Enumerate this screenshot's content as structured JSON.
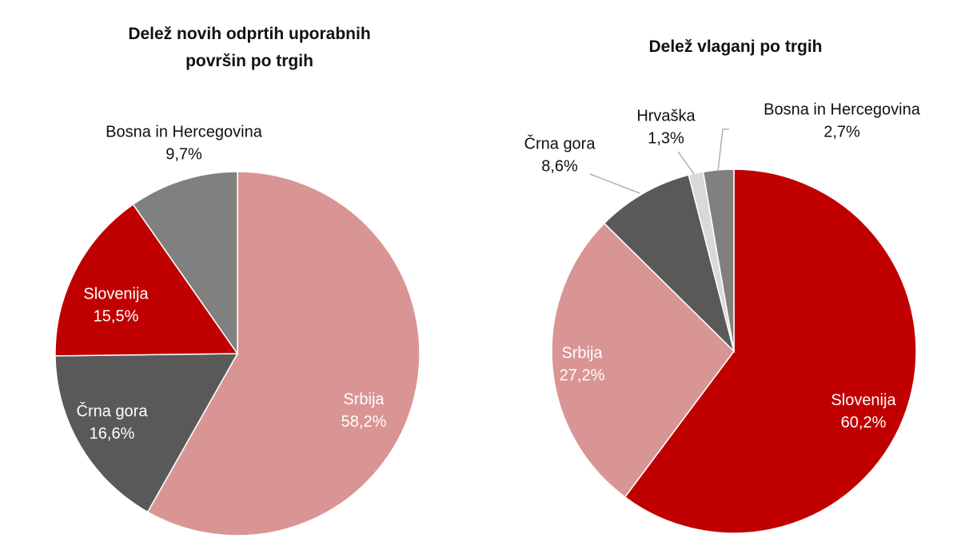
{
  "chart_data": [
    {
      "type": "pie",
      "title": "Delež novih odprtih uporabnih površin po trgih",
      "categories": [
        "Srbija",
        "Črna gora",
        "Slovenija",
        "Bosna in Hercegovina"
      ],
      "values": [
        58.2,
        16.6,
        15.5,
        9.7
      ],
      "value_labels": [
        "58,2%",
        "16,6%",
        "15,5%",
        "9,7%"
      ],
      "colors": [
        "#d99594",
        "#595959",
        "#c00000",
        "#808080"
      ]
    },
    {
      "type": "pie",
      "title": "Delež vlaganj po trgih",
      "categories": [
        "Slovenija",
        "Srbija",
        "Črna gora",
        "Hrvaška",
        "Bosna in Hercegovina"
      ],
      "values": [
        60.2,
        27.2,
        8.6,
        1.3,
        2.7
      ],
      "value_labels": [
        "60,2%",
        "27,2%",
        "8,6%",
        "1,3%",
        "2,7%"
      ],
      "colors": [
        "#c00000",
        "#d99594",
        "#595959",
        "#d9d9d9",
        "#808080"
      ]
    }
  ]
}
